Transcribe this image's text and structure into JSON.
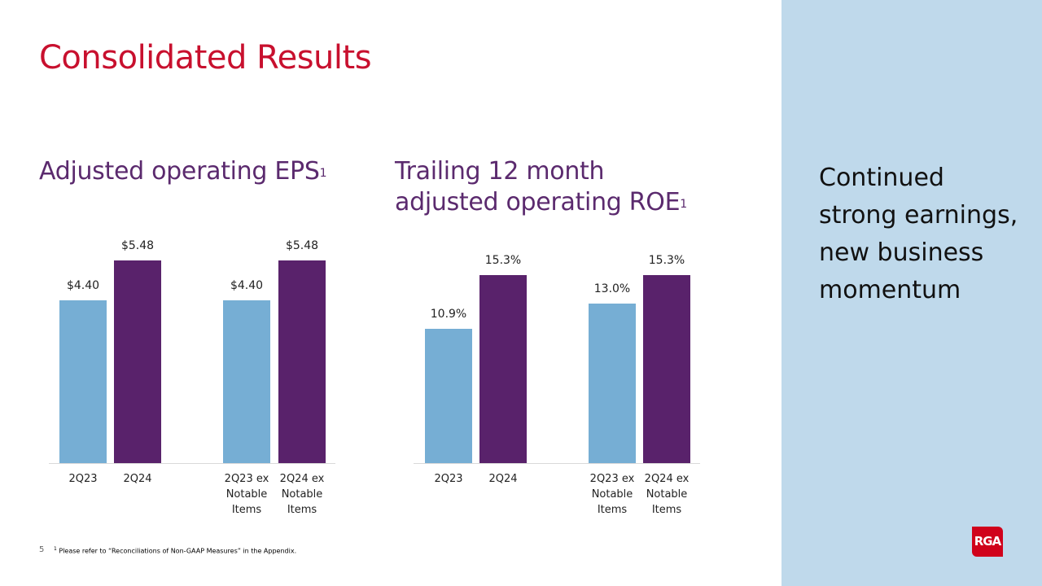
{
  "title": "Consolidated Results",
  "eps": {
    "title": "Adjusted operating EPS",
    "sup": "1"
  },
  "roe": {
    "title_line1": "Trailing 12 month",
    "title_line2": "adjusted operating ROE",
    "sup": "1"
  },
  "panel": {
    "text": "Continued strong earnings, new business momentum"
  },
  "footer": {
    "page": "5",
    "sup": "1",
    "note": "Please refer to “Reconciliations  of Non-GAAP Measures” in the Appendix."
  },
  "logo": "RGA",
  "colors": {
    "light": "#76aed4",
    "dark": "#59226b"
  },
  "chart_data": [
    {
      "type": "bar",
      "title": "Adjusted operating EPS",
      "categories": [
        "2Q23",
        "2Q24",
        "2Q23 ex Notable Items",
        "2Q24 ex Notable Items"
      ],
      "values": [
        4.4,
        5.48,
        4.4,
        5.48
      ],
      "labels": [
        "$4.40",
        "$5.48",
        "$4.40",
        "$5.48"
      ],
      "ylim": [
        0,
        5.48
      ]
    },
    {
      "type": "bar",
      "title": "Trailing 12 month adjusted operating ROE",
      "categories": [
        "2Q23",
        "2Q24",
        "2Q23 ex Notable Items",
        "2Q24 ex Notable Items"
      ],
      "values": [
        10.9,
        15.3,
        13.0,
        15.3
      ],
      "labels": [
        "10.9%",
        "15.3%",
        "13.0%",
        "15.3%"
      ],
      "ylim": [
        0,
        15.3
      ]
    }
  ]
}
